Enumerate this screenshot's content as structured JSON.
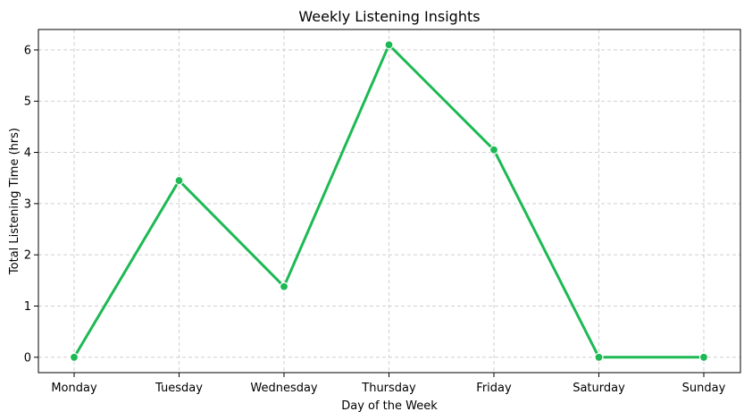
{
  "chart_data": {
    "type": "line",
    "title": "Weekly Listening Insights",
    "xlabel": "Day of the Week",
    "ylabel": "Total Listening Time (hrs)",
    "categories": [
      "Monday",
      "Tuesday",
      "Wednesday",
      "Thursday",
      "Friday",
      "Saturday",
      "Sunday"
    ],
    "series": [
      {
        "values": [
          0,
          3.45,
          1.38,
          6.1,
          4.05,
          0,
          0
        ],
        "color": "#1DB954"
      }
    ],
    "yticks": [
      0,
      1,
      2,
      3,
      4,
      5,
      6
    ],
    "ylim": [
      -0.3,
      6.4
    ],
    "grid": true,
    "marker": "circle"
  }
}
